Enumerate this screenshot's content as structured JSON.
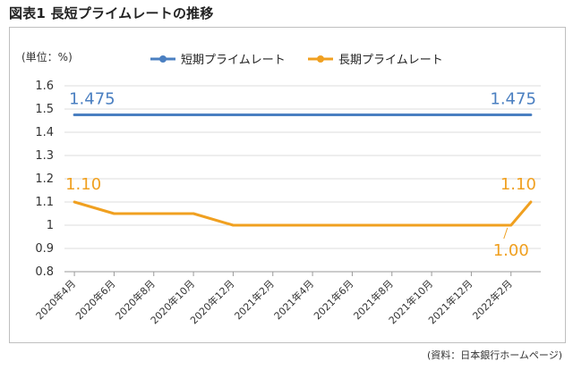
{
  "page": {
    "heading": "図表1 長短プライムレートの推移",
    "source": "(資料：日本銀行ホームページ)"
  },
  "chart_data": {
    "type": "line",
    "title": "",
    "unit_label": "(単位：%)",
    "xlabel": "",
    "ylabel": "",
    "ylim": [
      0.8,
      1.6
    ],
    "yticks": [
      "0.8",
      "0.9",
      "1",
      "1.1",
      "1.2",
      "1.3",
      "1.4",
      "1.5",
      "1.6"
    ],
    "grid": true,
    "legend_position": "top-right",
    "x_labels": [
      "2020年4月",
      "2020年6月",
      "2020年8月",
      "2020年10月",
      "2020年12月",
      "2021年2月",
      "2021年4月",
      "2021年6月",
      "2021年8月",
      "2021年10月",
      "2021年12月",
      "2022年2月"
    ],
    "series": [
      {
        "name": "短期プライムレート",
        "color": "#4a7fc1",
        "months": [
          0,
          23
        ],
        "values": [
          1.475,
          1.475
        ]
      },
      {
        "name": "長期プライムレート",
        "color": "#f0a020",
        "months": [
          0,
          2,
          6,
          8,
          22,
          23
        ],
        "values": [
          1.1,
          1.05,
          1.05,
          1.0,
          1.0,
          1.1
        ]
      }
    ],
    "annotations": [
      {
        "text": "1.475",
        "series": 0,
        "month": 0,
        "color": "#4a7fc1"
      },
      {
        "text": "1.475",
        "series": 0,
        "month": 23,
        "color": "#4a7fc1"
      },
      {
        "text": "1.10",
        "series": 1,
        "month": 0,
        "color": "#f0a020"
      },
      {
        "text": "1.10",
        "series": 1,
        "month": 23,
        "color": "#f0a020"
      },
      {
        "text": "1.00",
        "series": 1,
        "month": 22,
        "color": "#f0a020"
      }
    ]
  }
}
